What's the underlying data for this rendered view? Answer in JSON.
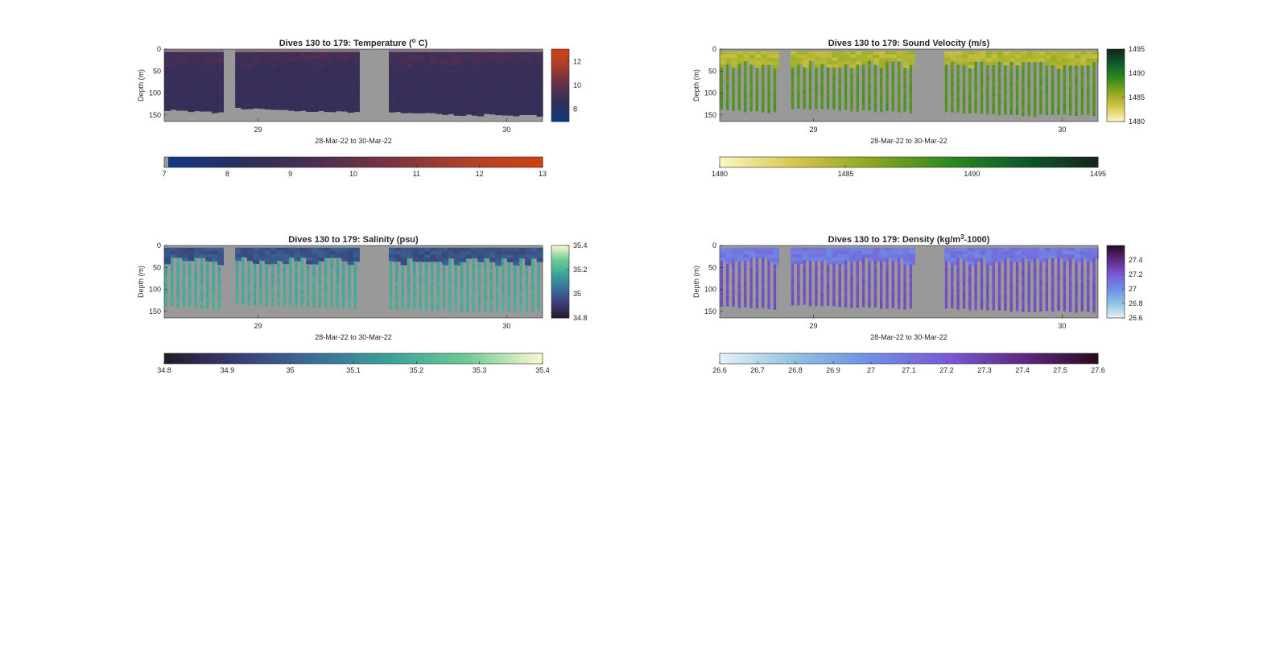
{
  "chart_data": [
    {
      "id": "temperature",
      "type": "heatmap",
      "title": "Dives 130 to 179: Temperature (",
      "title_sup": "o",
      "title_end": " C)",
      "ylabel": "Depth (m)",
      "xlabel": "28-Mar-22 to 30-Mar-22",
      "x_ticks": [
        "29",
        "30"
      ],
      "y_ticks": [
        "0",
        "50",
        "100",
        "150"
      ],
      "ylim": [
        0,
        165
      ],
      "side_colorbar_ticks": [
        "12",
        "10",
        "8"
      ],
      "bottom_colorbar_ticks": [
        "7",
        "8",
        "9",
        "10",
        "11",
        "12",
        "13"
      ],
      "clim": [
        7,
        13
      ],
      "colormap": [
        "#0b3a8a",
        "#2a2f5c",
        "#4a2f52",
        "#7a3440",
        "#b0402a",
        "#d2400e"
      ],
      "pattern": "solid",
      "surface_value": 9.2,
      "deep_value": 8.8
    },
    {
      "id": "sound_velocity",
      "type": "heatmap",
      "title": "Dives 130 to 179: Sound Velocity (m/s)",
      "ylabel": "Depth (m)",
      "xlabel": "28-Mar-22 to 30-Mar-22",
      "x_ticks": [
        "29",
        "30"
      ],
      "y_ticks": [
        "0",
        "50",
        "100",
        "150"
      ],
      "ylim": [
        0,
        165
      ],
      "side_colorbar_ticks": [
        "1495",
        "1490",
        "1485",
        "1480"
      ],
      "bottom_colorbar_ticks": [
        "1480",
        "1485",
        "1490",
        "1495"
      ],
      "clim": [
        1480,
        1495
      ],
      "colormap": [
        "#fbf6c4",
        "#d6c64a",
        "#8ea71e",
        "#2f8a1e",
        "#0f5a2c",
        "#14251a"
      ],
      "pattern": "bars",
      "surface_value": 1484.5,
      "deep_value": 1487.5
    },
    {
      "id": "salinity",
      "type": "heatmap",
      "title": "Dives 130 to 179: Salinity (psu)",
      "ylabel": "Depth (m)",
      "xlabel": "28-Mar-22 to 30-Mar-22",
      "x_ticks": [
        "29",
        "30"
      ],
      "y_ticks": [
        "0",
        "50",
        "100",
        "150"
      ],
      "ylim": [
        0,
        165
      ],
      "side_colorbar_ticks": [
        "35.4",
        "35.2",
        "35",
        "34.8"
      ],
      "bottom_colorbar_ticks": [
        "34.8",
        "34.9",
        "35",
        "35.1",
        "35.2",
        "35.3",
        "35.4"
      ],
      "clim": [
        34.8,
        35.4
      ],
      "colormap": [
        "#221a2a",
        "#3a3e78",
        "#3a6e9a",
        "#3aa39a",
        "#6ecb96",
        "#fbf9d0"
      ],
      "pattern": "bars",
      "surface_value": 34.97,
      "deep_value": 35.17
    },
    {
      "id": "density",
      "type": "heatmap",
      "title": "Dives 130 to 179: Density (kg/m",
      "title_sup": "3",
      "title_end": "-1000)",
      "ylabel": "Depth (m)",
      "xlabel": "28-Mar-22 to 30-Mar-22",
      "x_ticks": [
        "29",
        "30"
      ],
      "y_ticks": [
        "0",
        "50",
        "100",
        "150"
      ],
      "ylim": [
        0,
        165
      ],
      "side_colorbar_ticks": [
        "27.4",
        "27.2",
        "27",
        "26.8",
        "26.6"
      ],
      "bottom_colorbar_ticks": [
        "26.6",
        "26.7",
        "26.8",
        "26.9",
        "27",
        "27.1",
        "27.2",
        "27.3",
        "27.4",
        "27.5",
        "27.6"
      ],
      "clim": [
        26.6,
        27.6
      ],
      "colormap": [
        "#e6f1f4",
        "#8fc2e2",
        "#6e8ee6",
        "#7a5ad6",
        "#5e2a86",
        "#2a0a1e"
      ],
      "pattern": "bars",
      "surface_value": 27.08,
      "deep_value": 27.22
    }
  ]
}
